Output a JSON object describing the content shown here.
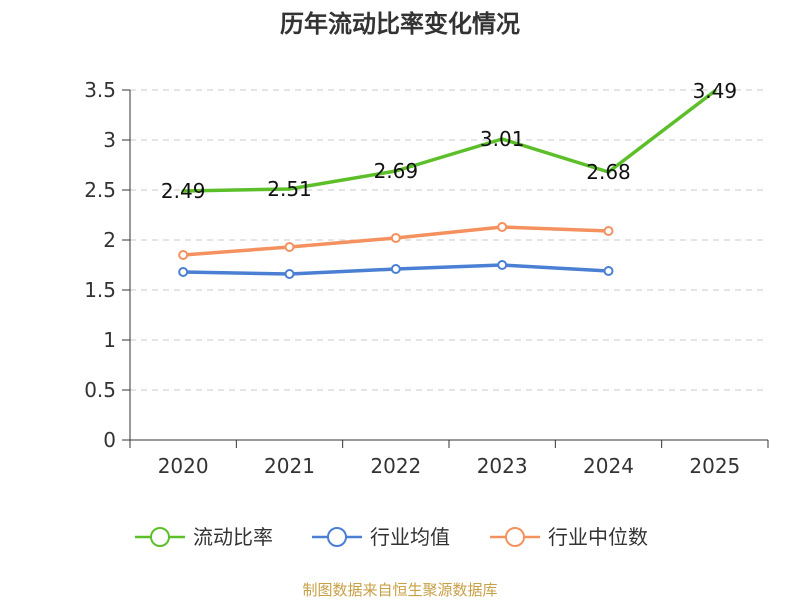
{
  "chart_data": {
    "type": "line",
    "title": "历年流动比率变化情况",
    "categories": [
      "2020",
      "2021",
      "2022",
      "2023",
      "2024",
      "2025"
    ],
    "ylim": [
      0,
      3.5
    ],
    "yticks": [
      "0",
      "0.5",
      "1",
      "1.5",
      "2",
      "2.5",
      "3",
      "3.5"
    ],
    "grid": true,
    "legend_position": "bottom",
    "series": [
      {
        "name": "流动比率",
        "color": "#5cbf2a",
        "values": [
          2.49,
          2.51,
          2.69,
          3.01,
          2.68,
          3.49
        ],
        "labels": [
          "2.49",
          "2.51",
          "2.69",
          "3.01",
          "2.68",
          "3.49"
        ],
        "markers": false
      },
      {
        "name": "行业均值",
        "color": "#4a7fd4",
        "values": [
          1.68,
          1.66,
          1.71,
          1.75,
          1.69,
          null
        ],
        "markers": true
      },
      {
        "name": "行业中位数",
        "color": "#f4915e",
        "values": [
          1.85,
          1.93,
          2.02,
          2.13,
          2.09,
          null
        ],
        "markers": true
      }
    ],
    "source": "制图数据来自恒生聚源数据库"
  }
}
